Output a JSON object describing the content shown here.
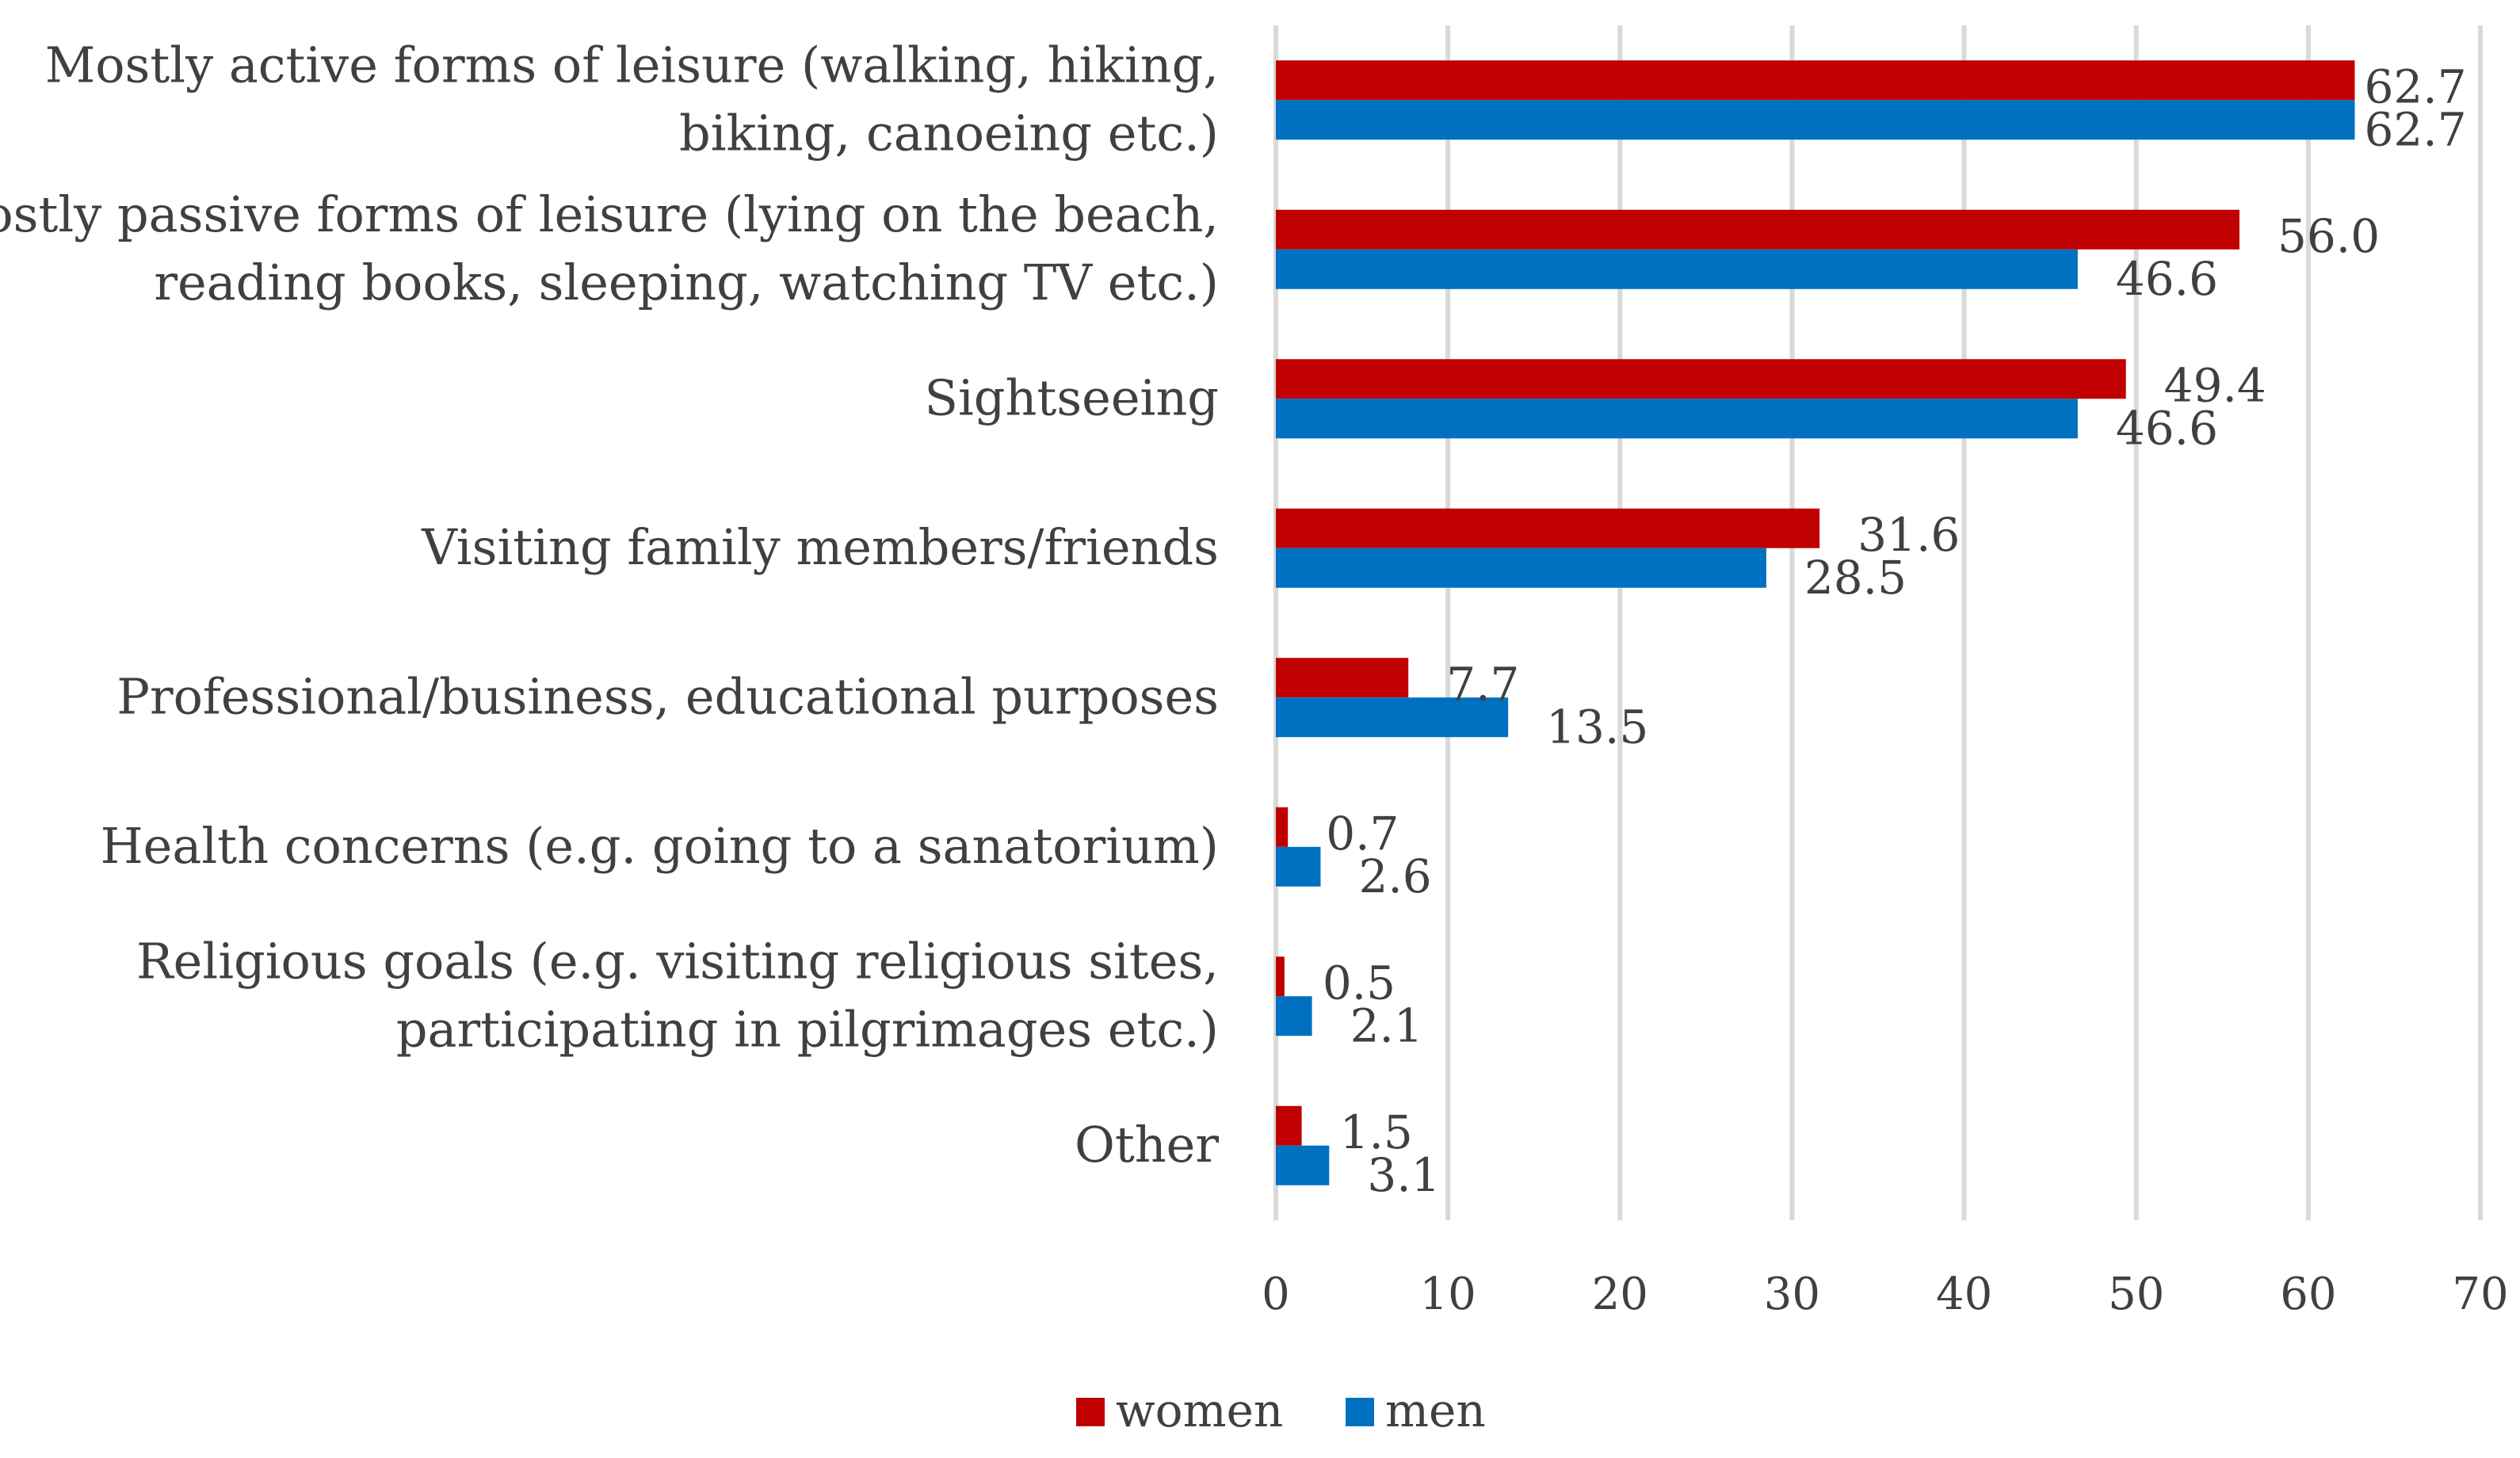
{
  "chart_data": {
    "type": "bar",
    "orientation": "horizontal",
    "categories": [
      [
        "Mostly active forms of leisure (walking, hiking,",
        "biking, canoeing etc.)"
      ],
      [
        "Mostly passive forms of leisure (lying on the beach,",
        "reading books, sleeping, watching TV etc.)"
      ],
      [
        "Sightseeing"
      ],
      [
        "Visiting family members/friends"
      ],
      [
        "Professional/business, educational purposes"
      ],
      [
        "Health concerns (e.g. going to a sanatorium)"
      ],
      [
        "Religious goals (e.g. visiting religious sites,",
        "participating in pilgrimages etc.)"
      ],
      [
        "Other"
      ]
    ],
    "series": [
      {
        "name": "women",
        "color": "#c00000",
        "values": [
          62.7,
          56.0,
          49.4,
          31.6,
          7.7,
          0.7,
          0.5,
          1.5
        ],
        "labels": [
          "62.7",
          "56.0",
          "49.4",
          "31.6",
          "7.7",
          "0.7",
          "0.5",
          "1.5"
        ]
      },
      {
        "name": "men",
        "color": "#0070c0",
        "values": [
          62.7,
          46.6,
          46.6,
          28.5,
          13.5,
          2.6,
          2.1,
          3.1
        ],
        "labels": [
          "62.7",
          "46.6",
          "46.6",
          "28.5",
          "13.5",
          "2.6",
          "2.1",
          "3.1"
        ]
      }
    ],
    "xlim": [
      0,
      70
    ],
    "xticks": [
      0,
      10,
      20,
      30,
      40,
      50,
      60,
      70
    ],
    "xtick_labels": [
      "0",
      "10",
      "20",
      "30",
      "40",
      "50",
      "60",
      "70"
    ],
    "grid": true,
    "legend_position": "bottom",
    "title": "",
    "xlabel": "",
    "ylabel": ""
  }
}
